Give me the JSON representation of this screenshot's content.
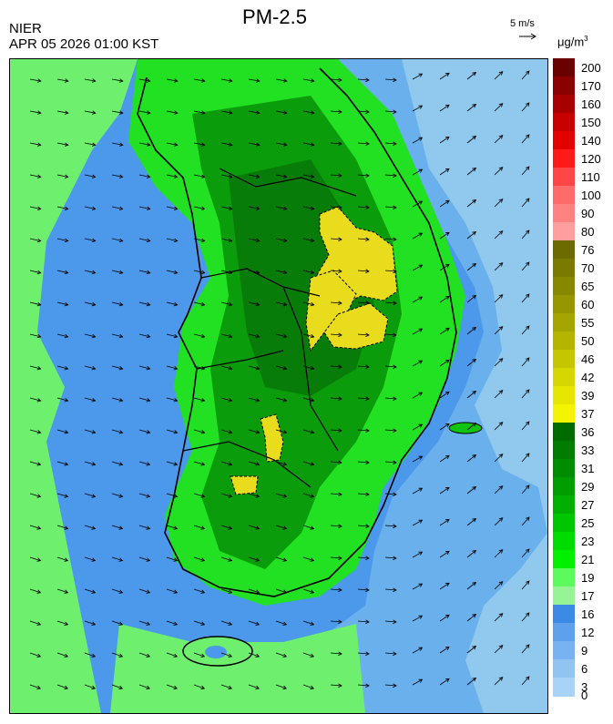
{
  "header": {
    "title": "PM-2.5",
    "agency": "NIER",
    "timestamp": "APR 05 2026 01:00 KST",
    "wind_reference": "5 m/s",
    "unit_base": "μg/m",
    "unit_exp": "3"
  },
  "legend": {
    "labels": [
      "200",
      "170",
      "160",
      "150",
      "140",
      "120",
      "110",
      "100",
      "90",
      "80",
      "76",
      "70",
      "65",
      "60",
      "55",
      "50",
      "46",
      "42",
      "39",
      "37",
      "36",
      "33",
      "31",
      "29",
      "27",
      "25",
      "23",
      "21",
      "19",
      "17",
      "16",
      "12",
      "9",
      "6",
      "3",
      "0"
    ],
    "colors": [
      "#6a0000",
      "#8b0000",
      "#a80000",
      "#c80000",
      "#e30000",
      "#ff1a1a",
      "#ff4646",
      "#ff6a6a",
      "#ff8282",
      "#ff9e9e",
      "#6b6b00",
      "#7a7a00",
      "#888800",
      "#969600",
      "#a5a500",
      "#b5b500",
      "#c6c600",
      "#d6d600",
      "#e6e600",
      "#f4f400",
      "#006c00",
      "#007d00",
      "#008c00",
      "#009d00",
      "#00b000",
      "#00c600",
      "#00dc00",
      "#00f000",
      "#5cfa5c",
      "#96f496",
      "#3a8ae6",
      "#5fa0ec",
      "#79b2f0",
      "#92c4f2",
      "#a8d2f6"
    ]
  },
  "map": {
    "palette": {
      "sea_light": "#90c8ee",
      "sea_mid": "#6ab0ec",
      "sea_blue": "#4c98ea",
      "green_pale": "#6ef06e",
      "green_bright": "#22e022",
      "green_mid": "#10c410",
      "green_dark": "#0a9c0a",
      "green_darker": "#087c08",
      "yellow": "#e8dc1c"
    },
    "wind_arrow_color": "#000000"
  }
}
